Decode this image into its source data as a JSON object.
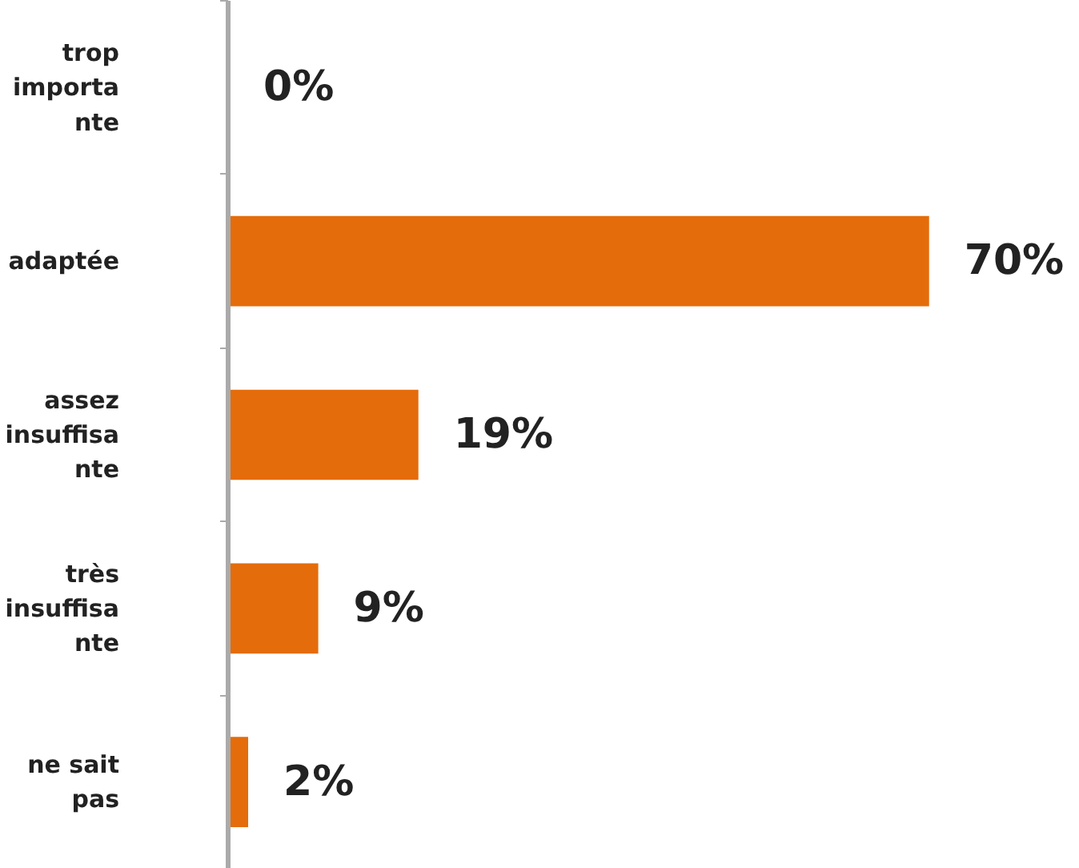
{
  "chart_data": {
    "type": "bar",
    "orientation": "horizontal",
    "categories": [
      "trop\nimporta\nnte",
      "adaptée",
      "assez\ninsuffisa\nnte",
      "très\ninsuffisa\nnte",
      "ne sait\npas"
    ],
    "values": [
      0,
      70,
      19,
      9,
      2
    ],
    "value_labels": [
      "0%",
      "70%",
      "19%",
      "9%",
      "2%"
    ],
    "color": "#e46c0a",
    "grid": false,
    "tick_labels": "y"
  }
}
